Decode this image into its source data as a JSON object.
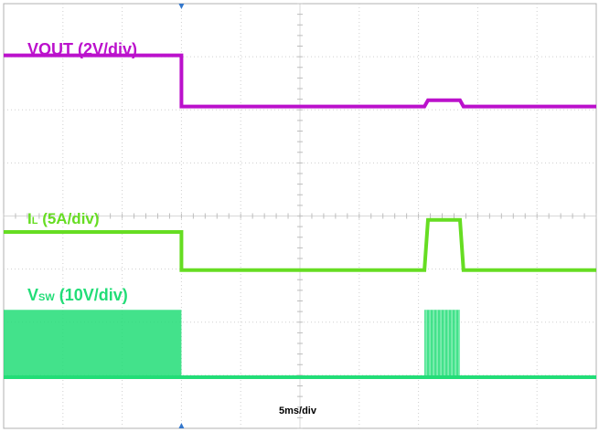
{
  "chart_data": {
    "type": "line",
    "title": "",
    "time_per_div": "5ms/div",
    "x_unit": "ms",
    "x_range": [
      -15,
      35
    ],
    "grid": true,
    "grid_divisions": {
      "x": 10,
      "y": 8
    },
    "series": [
      {
        "name": "VOUT (2V/div)",
        "label_main": "VOUT (2V/div)",
        "color": "#bb11cc",
        "scale": "2V/div",
        "x": [
          -15,
          0,
          0,
          20.5,
          20.8,
          23.5,
          23.8,
          35
        ],
        "y": [
          11.2,
          11.2,
          6.2,
          6.2,
          6.8,
          6.8,
          6.2,
          6.2
        ]
      },
      {
        "name": "IL (5A/div)",
        "label_main": "I",
        "label_sub": "L",
        "label_rest": " (5A/div)",
        "color": "#66dd22",
        "scale": "5A/div",
        "x": [
          -15,
          0,
          0,
          20.5,
          20.8,
          23.5,
          23.8,
          35
        ],
        "y": [
          10,
          10,
          0.5,
          0.5,
          13,
          13,
          0.5,
          0.5
        ]
      },
      {
        "name": "VSW (10V/div)",
        "label_main": "V",
        "label_sub": "SW",
        "label_rest": " (10V/div)",
        "color": "#22dd77",
        "scale": "10V/div",
        "switching": [
          {
            "from": -15,
            "to": 0,
            "low": 0,
            "high": 25
          },
          {
            "from": 20.5,
            "to": 23.5,
            "low": 0,
            "high": 25
          }
        ],
        "x": [
          -15,
          35
        ],
        "y": [
          0,
          0
        ]
      }
    ]
  }
}
